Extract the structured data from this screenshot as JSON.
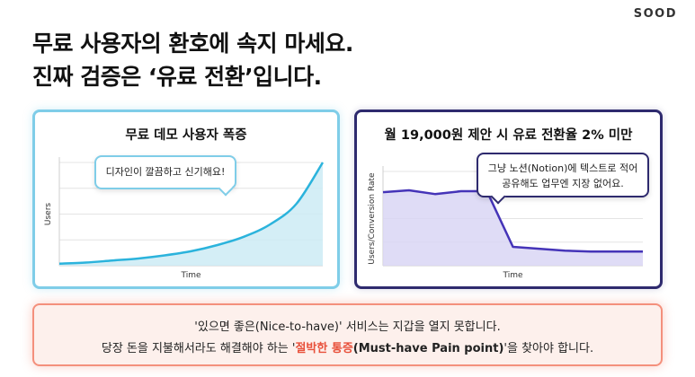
{
  "brand": "SOOD",
  "headline": {
    "line1": "무료 사용자의 환호에 속지 마세요.",
    "line2": "진짜 검증은 ‘유료 전환’입니다."
  },
  "left_card": {
    "title": "무료 데모 사용자 폭증",
    "bubble": "디자인이 깔끔하고 신기해요!",
    "chart_data": {
      "type": "area",
      "xlabel": "Time",
      "ylabel": "Users",
      "x": [
        0,
        1,
        2,
        3,
        4,
        5,
        6,
        7,
        8,
        9,
        10
      ],
      "values": [
        2,
        3,
        5,
        7,
        10,
        14,
        20,
        28,
        40,
        60,
        100
      ],
      "ylim": [
        0,
        100
      ],
      "grid": true,
      "line_color": "#2bb3dc",
      "fill_color": "#cdebf5"
    }
  },
  "right_card": {
    "title": "월 19,000원 제안 시 유료 전환율 2% 미만",
    "bubble_line1": "그냥 노션(Notion)에 텍스트로 적어",
    "bubble_line2": "공유해도 업무엔 지장 없어요.",
    "chart_data": {
      "type": "area",
      "xlabel": "Time",
      "ylabel": "Users/Conversion Rate",
      "x": [
        0,
        1,
        2,
        3,
        4,
        5,
        6,
        7,
        8,
        9,
        10
      ],
      "values": [
        78,
        80,
        76,
        79,
        79,
        20,
        18,
        16,
        15,
        15,
        15
      ],
      "ylim": [
        0,
        100
      ],
      "grid": true,
      "line_color": "#4534b8",
      "fill_color": "#d9d6f4"
    }
  },
  "callout": {
    "line1": "'있으면 좋은(Nice-to-have)' 서비스는 지갑을 열지 못합니다.",
    "line2_before": "당장 돈을 지불해서라도 해결해야 하는 '",
    "line2_highlight": "절박한 통증",
    "line2_bold": "(Must-have Pain point)",
    "line2_after": "'을 찾아야 합니다.",
    "highlight_color": "#e8503a"
  },
  "colors": {
    "left_border": "#7fcde8",
    "right_border": "#2e2a6e",
    "callout_border": "#f4907c",
    "callout_bg": "#fdf0ec"
  }
}
